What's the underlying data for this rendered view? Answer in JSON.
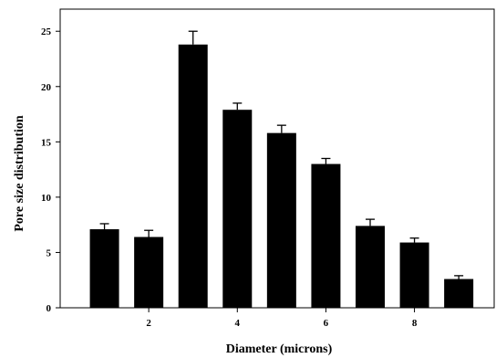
{
  "chart_data": {
    "type": "bar",
    "title": "",
    "xlabel": "Diameter (microns)",
    "ylabel": "Pore size distribution",
    "x": [
      1,
      2,
      3,
      4,
      5,
      6,
      7,
      8,
      9
    ],
    "values": [
      7.1,
      6.4,
      23.8,
      17.9,
      15.8,
      13.0,
      7.4,
      5.9,
      2.6
    ],
    "errors": [
      0.5,
      0.6,
      1.2,
      0.6,
      0.7,
      0.5,
      0.6,
      0.4,
      0.3
    ],
    "xlim": [
      0,
      9.8
    ],
    "ylim": [
      0,
      27
    ],
    "xticks": [
      2,
      4,
      6,
      8
    ],
    "yticks": [
      0,
      5,
      10,
      15,
      20,
      25
    ],
    "bar_color": "#000000",
    "grid": false,
    "legend": "none"
  }
}
